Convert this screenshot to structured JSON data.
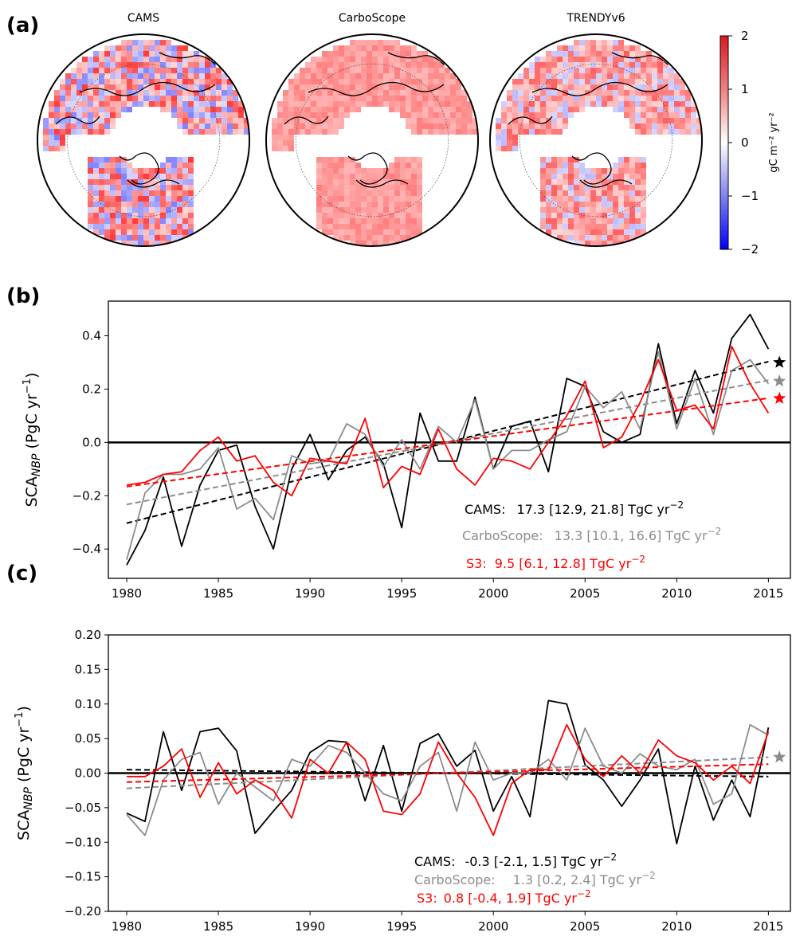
{
  "panel_labels": [
    "(a)",
    "(b)",
    "(c)"
  ],
  "colors": {
    "cams": "#000000",
    "carboscope": "#8c8c8c",
    "s3": "#ff0000",
    "positive": "#e8202a",
    "negative": "#1a1aff"
  },
  "maps": {
    "titles": [
      "CAMS",
      "CarboScope",
      "TRENDYv6"
    ],
    "colorbar": {
      "label": "gC m⁻² yr⁻²",
      "ticks": [
        "2",
        "1",
        "0",
        "−1",
        "−2"
      ],
      "min": -2,
      "max": 2
    }
  },
  "chart_data": [
    {
      "panel": "(b)",
      "type": "line",
      "xlabel": "",
      "ylabel": "SCA_NBP (PgC yr⁻¹)",
      "ylabel_parts": {
        "main": "SCA",
        "sub": "NBP",
        "unit": " (PgC yr",
        "sup": "−1",
        "close": ")"
      },
      "xlim": [
        1979,
        2016.2
      ],
      "ylim": [
        -0.51,
        0.53
      ],
      "xticks": [
        1980,
        1985,
        1990,
        1995,
        2000,
        2005,
        2010,
        2015
      ],
      "yticks": [
        -0.4,
        -0.2,
        0.0,
        0.2,
        0.4
      ],
      "ytick_labels": [
        "−0.4",
        "−0.2",
        "0.0",
        "0.2",
        "0.4"
      ],
      "x": [
        1980,
        1981,
        1982,
        1983,
        1984,
        1985,
        1986,
        1987,
        1988,
        1989,
        1990,
        1991,
        1992,
        1993,
        1994,
        1995,
        1996,
        1997,
        1998,
        1999,
        2000,
        2001,
        2002,
        2003,
        2004,
        2005,
        2006,
        2007,
        2008,
        2009,
        2010,
        2011,
        2012,
        2013,
        2014,
        2015
      ],
      "series": [
        {
          "name": "CAMS",
          "key": "cams",
          "values": [
            -0.46,
            -0.33,
            -0.13,
            -0.39,
            -0.16,
            -0.03,
            -0.01,
            -0.24,
            -0.4,
            -0.1,
            0.03,
            -0.14,
            -0.03,
            0.02,
            -0.08,
            -0.32,
            0.11,
            -0.07,
            -0.07,
            0.17,
            -0.1,
            0.06,
            0.08,
            -0.11,
            0.24,
            0.21,
            0.04,
            0.0,
            0.03,
            0.37,
            0.07,
            0.27,
            0.11,
            0.39,
            0.48,
            0.35
          ],
          "trend": [
            -0.303,
            0.303
          ],
          "star": 0.3
        },
        {
          "name": "CarboScope",
          "key": "carboscope",
          "values": [
            -0.44,
            -0.19,
            -0.12,
            -0.12,
            -0.1,
            -0.02,
            -0.25,
            -0.21,
            -0.29,
            -0.05,
            -0.08,
            -0.07,
            0.07,
            0.03,
            -0.09,
            0.01,
            -0.1,
            0.06,
            0.0,
            0.16,
            -0.1,
            -0.03,
            -0.03,
            0.01,
            0.04,
            0.21,
            0.13,
            0.19,
            0.05,
            0.34,
            0.05,
            0.24,
            0.03,
            0.27,
            0.31,
            0.22
          ],
          "trend": [
            -0.233,
            0.233
          ],
          "star": 0.23
        },
        {
          "name": "S3",
          "key": "s3",
          "values": [
            -0.16,
            -0.15,
            -0.12,
            -0.11,
            -0.03,
            0.02,
            -0.07,
            -0.05,
            -0.15,
            -0.2,
            -0.06,
            -0.07,
            -0.08,
            0.09,
            -0.17,
            -0.09,
            -0.12,
            0.05,
            -0.1,
            -0.16,
            -0.06,
            -0.07,
            -0.1,
            0.0,
            0.1,
            0.23,
            -0.02,
            0.02,
            0.15,
            0.31,
            0.12,
            0.14,
            0.05,
            0.36,
            0.22,
            0.11
          ],
          "trend": [
            -0.166,
            0.166
          ],
          "star": 0.165
        }
      ],
      "stats": [
        {
          "name": "CAMS:",
          "text": "17.3 [12.9, 21.8] TgC yr",
          "sup": "−2",
          "key": "cams"
        },
        {
          "name": "CarboScope:",
          "text": "13.3 [10.1, 16.6] TgC yr",
          "sup": "−2",
          "key": "carboscope"
        },
        {
          "name": "S3:",
          "text": "9.5 [6.1, 12.8] TgC yr",
          "sup": "−2",
          "key": "s3"
        }
      ]
    },
    {
      "panel": "(c)",
      "type": "line",
      "xlabel": "",
      "ylabel": "SCA_NBP (PgC yr⁻¹)",
      "ylabel_parts": {
        "main": "SCA",
        "sub": "NBP",
        "unit": " (PgC yr",
        "sup": "−1",
        "close": ")"
      },
      "xlim": [
        1979,
        2016.2
      ],
      "ylim": [
        -0.2,
        0.2
      ],
      "xticks": [
        1980,
        1985,
        1990,
        1995,
        2000,
        2005,
        2010,
        2015
      ],
      "yticks": [
        -0.2,
        -0.15,
        -0.1,
        -0.05,
        0.0,
        0.05,
        0.1,
        0.15,
        0.2
      ],
      "ytick_labels": [
        "−0.20",
        "−0.15",
        "−0.10",
        "−0.05",
        "0.00",
        "0.05",
        "0.10",
        "0.15",
        "0.20"
      ],
      "x": [
        1980,
        1981,
        1982,
        1983,
        1984,
        1985,
        1986,
        1987,
        1988,
        1989,
        1990,
        1991,
        1992,
        1993,
        1994,
        1995,
        1996,
        1997,
        1998,
        1999,
        2000,
        2001,
        2002,
        2003,
        2004,
        2005,
        2006,
        2007,
        2008,
        2009,
        2010,
        2011,
        2012,
        2013,
        2014,
        2015
      ],
      "series": [
        {
          "name": "CAMS",
          "key": "cams",
          "values": [
            -0.058,
            -0.07,
            0.06,
            -0.025,
            0.06,
            0.065,
            0.032,
            -0.087,
            -0.055,
            -0.025,
            0.03,
            0.047,
            0.045,
            -0.04,
            0.04,
            -0.055,
            0.043,
            0.057,
            0.01,
            0.033,
            -0.055,
            -0.005,
            -0.063,
            0.105,
            0.1,
            0.012,
            -0.01,
            -0.048,
            -0.01,
            0.035,
            -0.102,
            0.01,
            -0.068,
            -0.01,
            -0.063,
            0.066
          ],
          "trend": [
            0.005,
            -0.005
          ]
        },
        {
          "name": "CarboScope",
          "key": "carboscope",
          "values": [
            -0.06,
            -0.09,
            -0.01,
            0.02,
            0.03,
            -0.045,
            0.0,
            -0.02,
            -0.04,
            0.02,
            0.01,
            0.04,
            0.03,
            0.0,
            -0.03,
            -0.04,
            0.01,
            0.03,
            -0.055,
            0.045,
            -0.01,
            0.0,
            0.0,
            0.02,
            -0.01,
            0.065,
            0.01,
            0.0,
            0.028,
            0.01,
            0.005,
            0.02,
            -0.045,
            -0.03,
            0.07,
            0.055
          ],
          "trend": [
            -0.022,
            0.023
          ],
          "star": 0.023
        },
        {
          "name": "S3",
          "key": "s3",
          "values": [
            -0.005,
            -0.005,
            0.01,
            0.035,
            -0.035,
            0.015,
            -0.03,
            -0.01,
            -0.025,
            -0.065,
            0.02,
            0.0,
            0.045,
            0.02,
            -0.055,
            -0.06,
            -0.03,
            0.045,
            0.0,
            -0.035,
            -0.09,
            -0.015,
            0.005,
            0.005,
            0.07,
            0.02,
            -0.005,
            0.025,
            0.0,
            0.048,
            0.025,
            0.015,
            -0.01,
            0.01,
            -0.015,
            0.06
          ],
          "trend": [
            -0.013,
            0.013
          ]
        }
      ],
      "stats": [
        {
          "name": "CAMS:",
          "text": "-0.3 [-2.1, 1.5] TgC yr",
          "sup": "−2",
          "key": "cams"
        },
        {
          "name": "CarboScope:",
          "text": "1.3 [0.2, 2.4] TgC yr",
          "sup": "−2",
          "key": "carboscope"
        },
        {
          "name": "S3:",
          "text": "0.8 [-0.4, 1.9] TgC yr",
          "sup": "−2",
          "key": "s3"
        }
      ]
    }
  ]
}
